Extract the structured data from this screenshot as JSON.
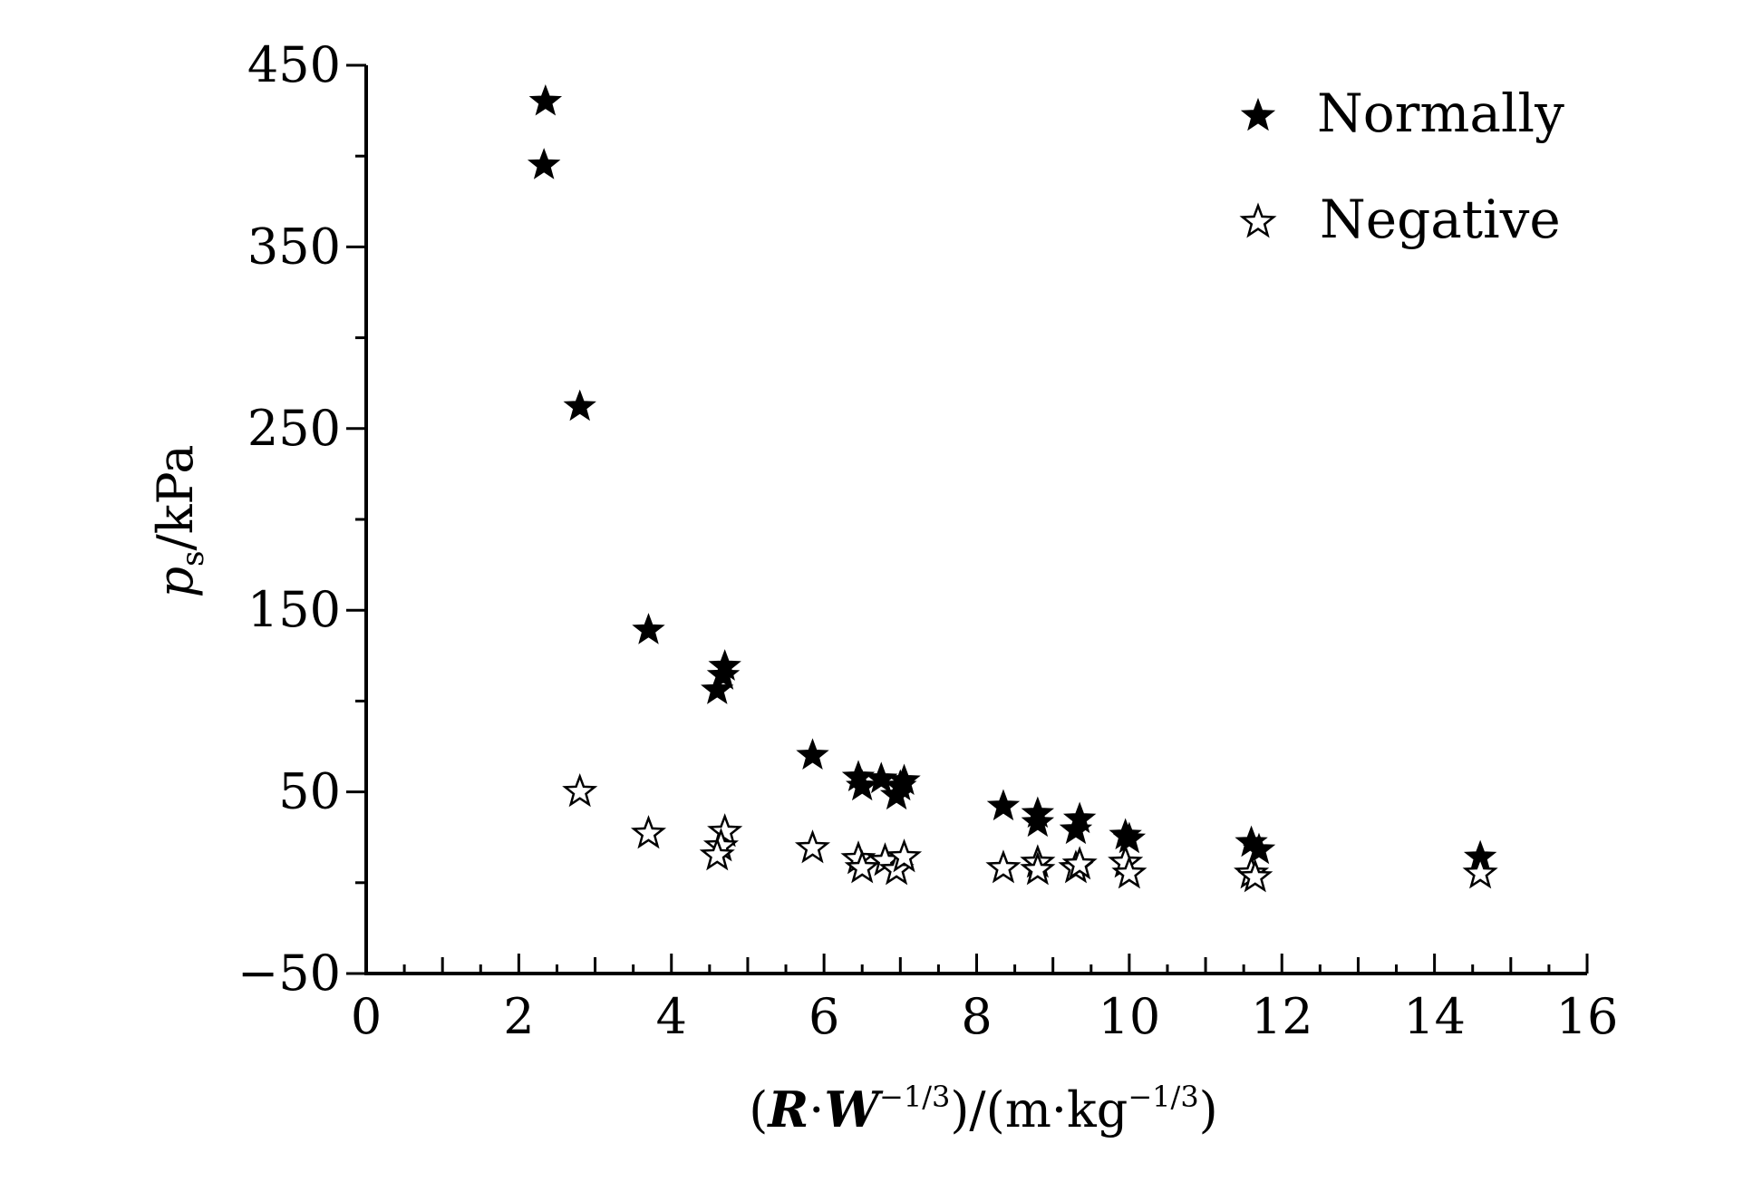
{
  "chart_data": {
    "type": "scatter",
    "xlabel": "(R·W−1/3)/(m·kg−1/3)",
    "xlabel_parts": {
      "open": "(",
      "R": "R",
      "dot1": "·",
      "W": "W",
      "exp1": "−1/3",
      "mid": ")/(m·kg",
      "exp2": "−1/3",
      "close": ")"
    },
    "ylabel": "ps/kPa",
    "ylabel_parts": {
      "p": "p",
      "sub": "s",
      "rest": "/kPa"
    },
    "xlim": [
      0,
      16
    ],
    "ylim": [
      -50,
      450
    ],
    "xticks": [
      "0",
      "2",
      "4",
      "6",
      "8",
      "10",
      "12",
      "14",
      "16"
    ],
    "yticks": [
      "−50",
      "50",
      "150",
      "250",
      "350",
      "450"
    ],
    "grid": false,
    "legend_position": "top-right",
    "series": [
      {
        "name": "Normally",
        "marker": "filled-star",
        "color": "#000000",
        "points": [
          [
            2.35,
            430
          ],
          [
            2.33,
            395
          ],
          [
            2.8,
            262
          ],
          [
            3.7,
            139
          ],
          [
            4.7,
            119
          ],
          [
            4.68,
            114
          ],
          [
            4.6,
            106
          ],
          [
            5.85,
            70
          ],
          [
            6.45,
            58
          ],
          [
            6.5,
            53
          ],
          [
            6.75,
            57
          ],
          [
            6.95,
            48
          ],
          [
            7.0,
            53
          ],
          [
            7.05,
            56
          ],
          [
            8.35,
            42
          ],
          [
            8.8,
            38
          ],
          [
            8.8,
            33
          ],
          [
            9.35,
            35
          ],
          [
            9.3,
            29
          ],
          [
            9.95,
            26
          ],
          [
            10.0,
            24
          ],
          [
            11.6,
            22
          ],
          [
            11.7,
            18
          ],
          [
            14.6,
            14
          ]
        ]
      },
      {
        "name": "Negative",
        "marker": "hollow-star",
        "color": "#000000",
        "points": [
          [
            2.8,
            50
          ],
          [
            3.7,
            27
          ],
          [
            4.7,
            28
          ],
          [
            4.65,
            20
          ],
          [
            4.6,
            15
          ],
          [
            5.85,
            19
          ],
          [
            6.45,
            13
          ],
          [
            6.5,
            8
          ],
          [
            6.8,
            12
          ],
          [
            6.95,
            7
          ],
          [
            7.05,
            14
          ],
          [
            8.35,
            8
          ],
          [
            8.8,
            11
          ],
          [
            8.8,
            7
          ],
          [
            9.3,
            8
          ],
          [
            9.35,
            10
          ],
          [
            9.95,
            11
          ],
          [
            10.0,
            5
          ],
          [
            11.6,
            5
          ],
          [
            11.65,
            3
          ],
          [
            14.6,
            5
          ]
        ]
      }
    ]
  }
}
